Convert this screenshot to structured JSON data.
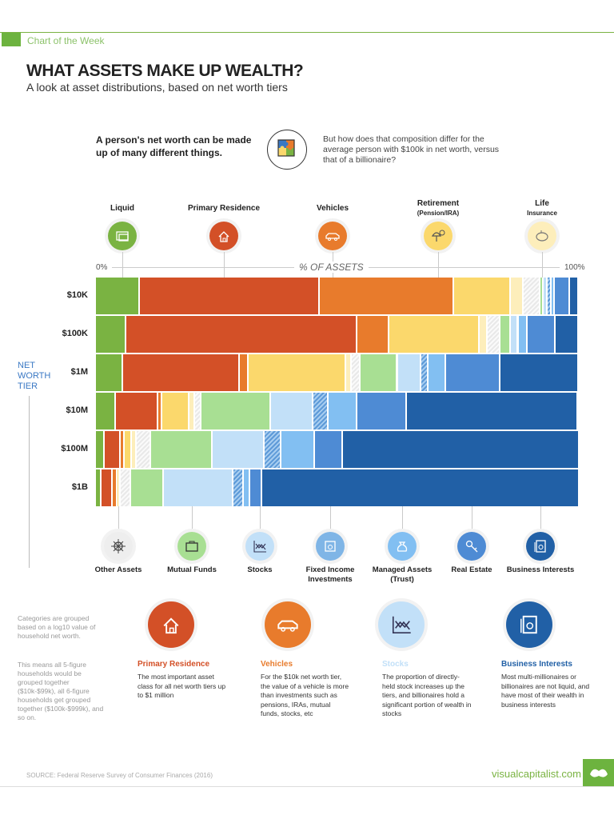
{
  "header": {
    "tag": "Chart of the Week",
    "title": "WHAT ASSETS MAKE UP WEALTH?",
    "subtitle": "A look at asset distributions, based on net worth tiers"
  },
  "intro": {
    "left": "A person's net worth can be made up of many different things.",
    "right": "But how does that composition differ for the average person with $100k in net worth, versus that of a billionaire?",
    "icon": "puzzle-icon"
  },
  "chart_data": {
    "type": "bar",
    "orientation": "horizontal-stacked-100",
    "xlabel": "% OF ASSETS",
    "xlim": [
      0,
      100
    ],
    "x_tick_labels": [
      "0%",
      "100%"
    ],
    "ylabel": "NET WORTH TIER",
    "categories": [
      "$10K",
      "$100K",
      "$1M",
      "$10M",
      "$100M",
      "$1B"
    ],
    "series": [
      {
        "name": "Liquid",
        "color": "#7ab342",
        "pattern": "solid",
        "values": [
          9.1,
          6.3,
          5.6,
          4.1,
          1.8,
          1.2
        ]
      },
      {
        "name": "Primary Residence",
        "color": "#d35027",
        "pattern": "solid",
        "values": [
          37.2,
          47.8,
          24.2,
          8.8,
          3.3,
          2.2
        ]
      },
      {
        "name": "Vehicles",
        "color": "#e87b2c",
        "pattern": "solid",
        "values": [
          27.8,
          6.7,
          1.8,
          0.8,
          0.9,
          1.1
        ]
      },
      {
        "name": "Retirement (Pension/IRA)",
        "color": "#fbd86c",
        "pattern": "solid",
        "values": [
          11.8,
          18.7,
          20.2,
          5.6,
          1.5,
          0.5
        ]
      },
      {
        "name": "Life Insurance",
        "color": "#fdeebb",
        "pattern": "solid",
        "values": [
          2.6,
          1.7,
          1.2,
          1.2,
          0.9,
          0.1
        ]
      },
      {
        "name": "Other Assets",
        "color": "#e6e6e6",
        "pattern": "hatch-gray",
        "values": [
          3.5,
          2.6,
          1.8,
          1.4,
          3.1,
          2.2
        ]
      },
      {
        "name": "Mutual Funds",
        "color": "#a8df93",
        "pattern": "solid",
        "values": [
          0.7,
          2.1,
          7.7,
          14.3,
          12.6,
          6.7
        ]
      },
      {
        "name": "Stocks",
        "color": "#c2e0f8",
        "pattern": "solid",
        "values": [
          0.8,
          1.6,
          4.9,
          8.8,
          10.8,
          14.5
        ]
      },
      {
        "name": "Fixed Income Investments",
        "color": "#7fb5e6",
        "pattern": "hatch-blue",
        "values": [
          0.9,
          0.1,
          1.5,
          3.2,
          3.5,
          2.1
        ]
      },
      {
        "name": "Managed Assets (Trust)",
        "color": "#82bff2",
        "pattern": "solid",
        "values": [
          0.7,
          1.8,
          3.6,
          5.9,
          6.9,
          1.3
        ]
      },
      {
        "name": "Real Estate",
        "color": "#4e8bd4",
        "pattern": "solid",
        "values": [
          3.1,
          5.8,
          11.3,
          10.3,
          5.9,
          2.5
        ]
      },
      {
        "name": "Business Interests",
        "color": "#2160a6",
        "pattern": "solid",
        "values": [
          1.8,
          4.8,
          16.2,
          35.5,
          48.9,
          65.7
        ]
      }
    ]
  },
  "axis": {
    "left": "0%",
    "right": "100%",
    "title": "% OF ASSETS",
    "tier_label": [
      "NET",
      "WORTH",
      "TIER"
    ]
  },
  "top_legend": [
    {
      "label": "Liquid",
      "sub": "",
      "icon": "cash-icon",
      "color": "#7ab342"
    },
    {
      "label": "Primary Residence",
      "sub": "",
      "icon": "house-icon",
      "color": "#d35027"
    },
    {
      "label": "Vehicles",
      "sub": "",
      "icon": "car-icon",
      "color": "#e87b2c"
    },
    {
      "label": "Retirement",
      "sub": "(Pension/IRA)",
      "icon": "beach-umbrella-icon",
      "color": "#fbd86c"
    },
    {
      "label": "Life",
      "sub": "Insurance",
      "icon": "piggy-bank-icon",
      "color": "#fdeebb"
    }
  ],
  "bottom_legend": [
    {
      "label": "Other Assets",
      "icon": "asterisk-icon",
      "color": "#eeeeee"
    },
    {
      "label": "Mutual Funds",
      "icon": "briefcase-icon",
      "color": "#a8df93"
    },
    {
      "label": "Stocks",
      "icon": "stock-chart-icon",
      "color": "#c2e0f8"
    },
    {
      "label": "Fixed Income Investments",
      "icon": "certificate-icon",
      "color": "#7fb5e6"
    },
    {
      "label": "Managed Assets (Trust)",
      "icon": "money-bag-icon",
      "color": "#82bff2"
    },
    {
      "label": "Real Estate",
      "icon": "key-icon",
      "color": "#4e8bd4"
    },
    {
      "label": "Business Interests",
      "icon": "document-seal-icon",
      "color": "#2160a6"
    }
  ],
  "notes": [
    "Categories are grouped based on a log10 value of household net worth.",
    "This means all 5-figure households would be grouped together ($10k-$99k), all 6-figure households get grouped together ($100k-$999k), and so on."
  ],
  "callouts": [
    {
      "title": "Primary Residence",
      "text": "The most important asset class for all net worth tiers up to $1 million",
      "color": "#d35027",
      "icon": "house-icon"
    },
    {
      "title": "Vehicles",
      "text": "For the $10k net worth tier, the value of a vehicle is more than investments such as pensions, IRAs, mutual funds, stocks, etc",
      "color": "#e87b2c",
      "icon": "car-icon"
    },
    {
      "title": "Stocks",
      "text": "The proportion of directly-held stock increases up the tiers, and billionaires hold a significant portion of wealth in stocks",
      "color": "#c2e0f8",
      "icon": "stock-chart-icon"
    },
    {
      "title": "Business Interests",
      "text": "Most multi-millionaires or billionaires are not liquid, and have most of their wealth in business interests",
      "color": "#2160a6",
      "icon": "document-seal-icon"
    }
  ],
  "footer": {
    "source": "SOURCE: Federal Reserve Survey of Consumer Finances (2016)",
    "brand": "visualcapitalist.com"
  }
}
